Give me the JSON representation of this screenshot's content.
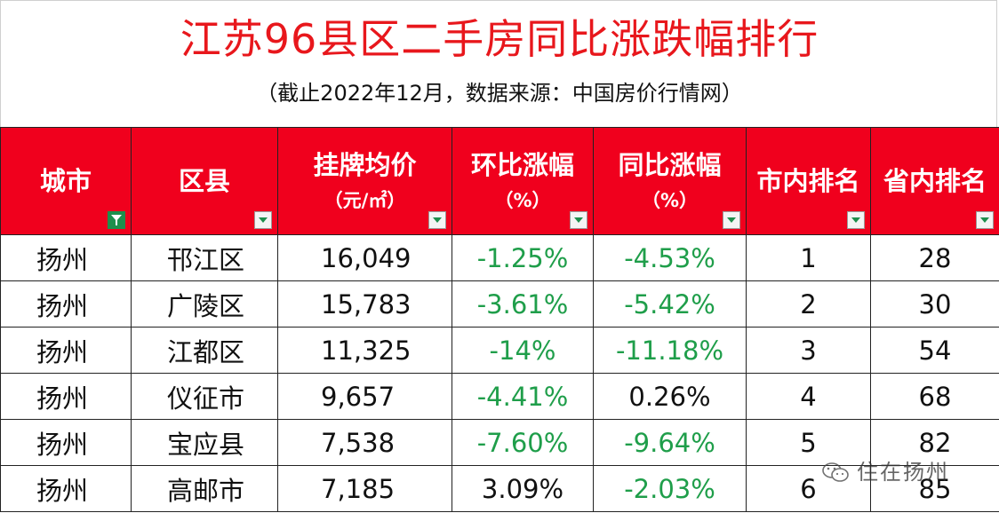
{
  "header": {
    "title": "江苏96县区二手房同比涨跌幅排行",
    "subtitle": "（截止2022年12月，数据来源：中国房价行情网）"
  },
  "table": {
    "columns": [
      {
        "line1": "城市",
        "line2": "",
        "filter": "active"
      },
      {
        "line1": "区县",
        "line2": "",
        "filter": "dropdown"
      },
      {
        "line1": "挂牌均价",
        "line2": "（元/㎡）",
        "filter": "dropdown"
      },
      {
        "line1": "环比涨幅",
        "line2": "（%）",
        "filter": "dropdown"
      },
      {
        "line1": "同比涨幅",
        "line2": "（%）",
        "filter": "dropdown"
      },
      {
        "line1": "市内排名",
        "line2": "",
        "filter": "dropdown"
      },
      {
        "line1": "省内排名",
        "line2": "",
        "filter": "dropdown"
      }
    ],
    "rows": [
      {
        "city": "扬州",
        "district": "邗江区",
        "price": "16,049",
        "mom": "-1.25%",
        "yoy": "-4.53%",
        "city_rank": "1",
        "prov_rank": "28"
      },
      {
        "city": "扬州",
        "district": "广陵区",
        "price": "15,783",
        "mom": "-3.61%",
        "yoy": "-5.42%",
        "city_rank": "2",
        "prov_rank": "30"
      },
      {
        "city": "扬州",
        "district": "江都区",
        "price": "11,325",
        "mom": "-14%",
        "yoy": "-11.18%",
        "city_rank": "3",
        "prov_rank": "54"
      },
      {
        "city": "扬州",
        "district": "仪征市",
        "price": "9,657",
        "mom": "-4.41%",
        "yoy": "0.26%",
        "city_rank": "4",
        "prov_rank": "68"
      },
      {
        "city": "扬州",
        "district": "宝应县",
        "price": "7,538",
        "mom": "-7.60%",
        "yoy": "-9.64%",
        "city_rank": "5",
        "prov_rank": "82"
      },
      {
        "city": "扬州",
        "district": "高邮市",
        "price": "7,185",
        "mom": "3.09%",
        "yoy": "-2.03%",
        "city_rank": "6",
        "prov_rank": "85"
      }
    ]
  },
  "watermark": {
    "text": "住在扬州",
    "icon": "wechat-icon"
  },
  "colors": {
    "title": "#e8171c",
    "header_bg": "#f0001d",
    "negative": "#1f9e4a"
  }
}
